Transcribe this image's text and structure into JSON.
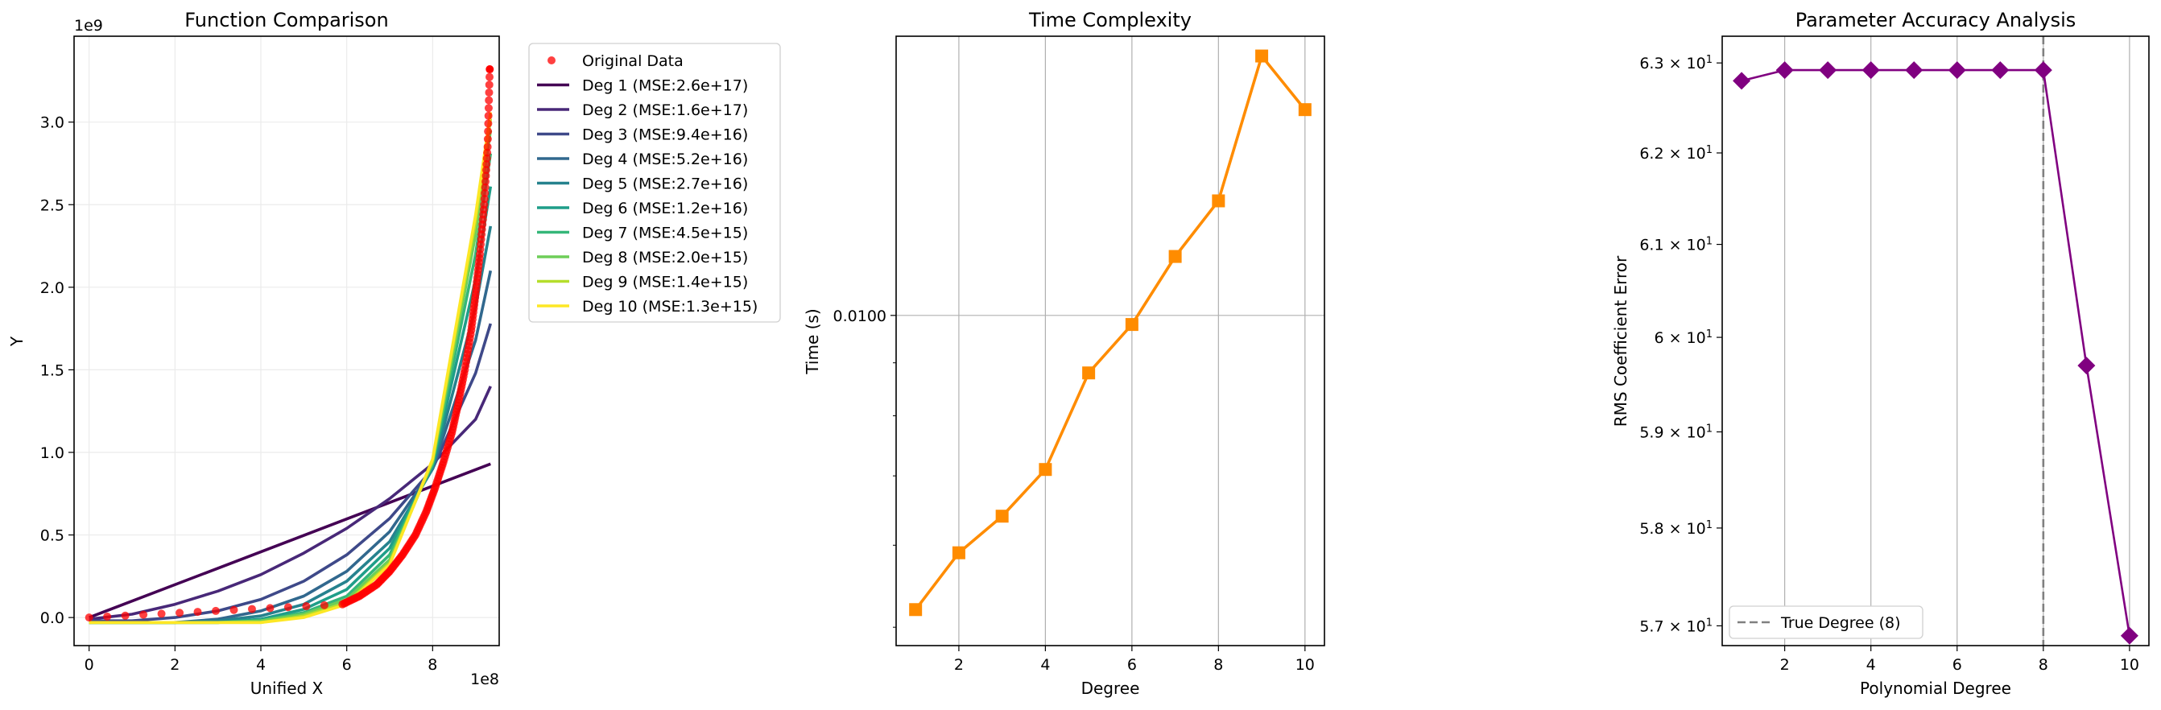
{
  "chart_data": [
    {
      "type": "line",
      "title": "Function Comparison",
      "xlabel": "Unified X",
      "ylabel": "Y",
      "x_offset_label": "1e8",
      "y_offset_label": "1e9",
      "xlim": [
        -0.35,
        9.55
      ],
      "ylim": [
        -0.17,
        3.52
      ],
      "xticks": [
        0,
        2,
        4,
        6,
        8
      ],
      "yticks": [
        0.0,
        0.5,
        1.0,
        1.5,
        2.0,
        2.5,
        3.0
      ],
      "grid": true,
      "legend_position": "outside-right",
      "scatter": {
        "name": "Original Data",
        "color": "#ff0000",
        "x": [
          0,
          5.9,
          6.3,
          6.7,
          7.0,
          7.3,
          7.6,
          7.85,
          8.05,
          8.25,
          8.45,
          8.6,
          8.75,
          8.9,
          9.0,
          9.1,
          9.2,
          9.28,
          9.33
        ],
        "y": [
          0.0,
          0.08,
          0.13,
          0.2,
          0.28,
          0.38,
          0.5,
          0.64,
          0.78,
          0.94,
          1.12,
          1.3,
          1.5,
          1.74,
          1.96,
          2.2,
          2.5,
          2.85,
          3.32
        ]
      },
      "series": [
        {
          "name": "Deg 1 (MSE:2.6e+17)",
          "color": "#440154",
          "x": [
            0,
            9.35
          ],
          "y": [
            0.0,
            0.93
          ]
        },
        {
          "name": "Deg 2 (MSE:1.6e+17)",
          "color": "#482878",
          "x": [
            0,
            1,
            2,
            3,
            4,
            5,
            6,
            7,
            8,
            9,
            9.35
          ],
          "y": [
            -0.01,
            0.02,
            0.08,
            0.16,
            0.26,
            0.39,
            0.54,
            0.72,
            0.93,
            1.2,
            1.4
          ]
        },
        {
          "name": "Deg 3 (MSE:9.4e+16)",
          "color": "#3e4989",
          "x": [
            0,
            1,
            2,
            3,
            4,
            5,
            6,
            7,
            8,
            9,
            9.35
          ],
          "y": [
            -0.02,
            -0.02,
            0.0,
            0.04,
            0.11,
            0.22,
            0.38,
            0.6,
            0.9,
            1.48,
            1.78
          ]
        },
        {
          "name": "Deg 4 (MSE:5.2e+16)",
          "color": "#31688e",
          "x": [
            0,
            1,
            2,
            3,
            4,
            5,
            6,
            7,
            8,
            9,
            9.35
          ],
          "y": [
            -0.03,
            -0.03,
            -0.03,
            -0.01,
            0.04,
            0.13,
            0.28,
            0.52,
            0.9,
            1.68,
            2.1
          ]
        },
        {
          "name": "Deg 5 (MSE:2.7e+16)",
          "color": "#26828e",
          "x": [
            0,
            1,
            2,
            3,
            4,
            5,
            6,
            7,
            8,
            9,
            9.35
          ],
          "y": [
            -0.03,
            -0.03,
            -0.03,
            -0.02,
            0.01,
            0.08,
            0.22,
            0.46,
            0.9,
            1.88,
            2.37
          ]
        },
        {
          "name": "Deg 6 (MSE:1.2e+16)",
          "color": "#1f9e89",
          "x": [
            0,
            1,
            2,
            3,
            4,
            5,
            6,
            7,
            8,
            9,
            9.35
          ],
          "y": [
            -0.03,
            -0.03,
            -0.03,
            -0.03,
            -0.01,
            0.05,
            0.17,
            0.42,
            0.92,
            2.05,
            2.61
          ]
        },
        {
          "name": "Deg 7 (MSE:4.5e+15)",
          "color": "#35b779",
          "x": [
            0,
            1,
            2,
            3,
            4,
            5,
            6,
            7,
            8,
            9,
            9.35
          ],
          "y": [
            -0.03,
            -0.03,
            -0.03,
            -0.03,
            -0.02,
            0.03,
            0.13,
            0.38,
            0.93,
            2.2,
            2.81
          ]
        },
        {
          "name": "Deg 8 (MSE:2.0e+15)",
          "color": "#6ece58",
          "x": [
            0,
            1,
            2,
            3,
            4,
            5,
            6,
            7,
            8,
            9,
            9.35
          ],
          "y": [
            -0.03,
            -0.03,
            -0.03,
            -0.03,
            -0.02,
            0.02,
            0.11,
            0.35,
            0.94,
            2.32,
            2.95
          ]
        },
        {
          "name": "Deg 9 (MSE:1.4e+15)",
          "color": "#b5de2b",
          "x": [
            0,
            1,
            2,
            3,
            4,
            5,
            6,
            7,
            8,
            9,
            9.35
          ],
          "y": [
            -0.03,
            -0.03,
            -0.03,
            -0.03,
            -0.03,
            0.01,
            0.09,
            0.33,
            0.95,
            2.4,
            3.02
          ]
        },
        {
          "name": "Deg 10 (MSE:1.3e+15)",
          "color": "#fde725",
          "x": [
            0,
            1,
            2,
            3,
            4,
            5,
            6,
            7,
            8,
            9,
            9.35
          ],
          "y": [
            -0.03,
            -0.03,
            -0.03,
            -0.03,
            -0.03,
            0.0,
            0.08,
            0.32,
            0.96,
            2.44,
            3.06
          ]
        }
      ]
    },
    {
      "type": "line",
      "title": "Time Complexity",
      "xlabel": "Degree",
      "ylabel": "Time (s)",
      "yscale": "log",
      "xlim": [
        0.55,
        10.45
      ],
      "ylim": [
        0.0048,
        0.0186
      ],
      "xticks": [
        2,
        4,
        6,
        8,
        10
      ],
      "yticks": [
        0.01
      ],
      "ytick_labels": [
        "0.0100"
      ],
      "grid": true,
      "series": [
        {
          "name": "",
          "color": "#ff8c00",
          "marker": "square",
          "x": [
            1,
            2,
            3,
            4,
            5,
            6,
            7,
            8,
            9,
            10
          ],
          "y": [
            0.0052,
            0.0059,
            0.0064,
            0.0071,
            0.0088,
            0.0098,
            0.0114,
            0.0129,
            0.0178,
            0.0158
          ]
        }
      ]
    },
    {
      "type": "line",
      "title": "Parameter Accuracy Analysis",
      "xlabel": "Polynomial Degree",
      "ylabel": "RMS Coefficient Error",
      "yscale": "log",
      "xlim": [
        0.55,
        10.45
      ],
      "ylim": [
        56.8,
        63.3
      ],
      "xticks": [
        2,
        4,
        6,
        8,
        10
      ],
      "yticks": [
        57,
        58,
        59,
        60,
        61,
        62,
        63
      ],
      "ytick_mantissas": [
        "5.7",
        "5.8",
        "5.9",
        "6",
        "6.1",
        "6.2",
        "6.3"
      ],
      "ytick_base": "10",
      "ytick_exponent": "1",
      "grid": true,
      "legend_position": "lower left",
      "true_degree": {
        "label": "True Degree (8)",
        "x": 8,
        "color": "#808080"
      },
      "series": [
        {
          "name": "",
          "color": "#800080",
          "marker": "diamond",
          "x": [
            1,
            2,
            3,
            4,
            5,
            6,
            7,
            8,
            9,
            10
          ],
          "y": [
            62.8,
            62.92,
            62.92,
            62.92,
            62.92,
            62.92,
            62.92,
            62.92,
            59.7,
            56.9
          ]
        }
      ]
    }
  ]
}
